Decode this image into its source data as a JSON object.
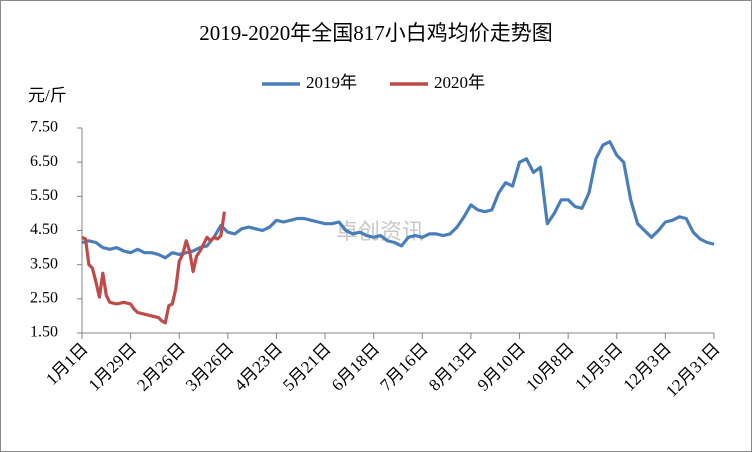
{
  "chart_data": {
    "type": "line",
    "title": "2019-2020年全国817小白鸡均价走势图",
    "y_unit": "元/斤",
    "watermark": "卓创资讯",
    "xlim": [
      0,
      364
    ],
    "xticks": [
      {
        "value": 0,
        "label": "1月1日"
      },
      {
        "value": 28,
        "label": "1月29日"
      },
      {
        "value": 56,
        "label": "2月26日"
      },
      {
        "value": 84,
        "label": "3月26日"
      },
      {
        "value": 112,
        "label": "4月23日"
      },
      {
        "value": 140,
        "label": "5月21日"
      },
      {
        "value": 168,
        "label": "6月18日"
      },
      {
        "value": 196,
        "label": "7月16日"
      },
      {
        "value": 224,
        "label": "8月13日"
      },
      {
        "value": 252,
        "label": "9月10日"
      },
      {
        "value": 280,
        "label": "10月8日"
      },
      {
        "value": 308,
        "label": "11月5日"
      },
      {
        "value": 336,
        "label": "12月3日"
      },
      {
        "value": 364,
        "label": "12月31日"
      }
    ],
    "ylim": [
      1.5,
      7.5
    ],
    "yticks": [
      {
        "value": 1.5,
        "label": "1.50"
      },
      {
        "value": 2.5,
        "label": "2.50"
      },
      {
        "value": 3.5,
        "label": "3.50"
      },
      {
        "value": 4.5,
        "label": "4.50"
      },
      {
        "value": 5.5,
        "label": "5.50"
      },
      {
        "value": 6.5,
        "label": "6.50"
      },
      {
        "value": 7.5,
        "label": "7.50"
      }
    ],
    "grid": false,
    "legend": "top",
    "series": [
      {
        "name": "2019年",
        "color": "#4a7ebb",
        "x": [
          0,
          4,
          8,
          12,
          16,
          20,
          24,
          28,
          32,
          36,
          40,
          44,
          48,
          52,
          56,
          60,
          64,
          68,
          72,
          76,
          80,
          84,
          88,
          92,
          96,
          100,
          104,
          108,
          112,
          116,
          120,
          124,
          128,
          132,
          136,
          140,
          144,
          148,
          152,
          156,
          160,
          164,
          168,
          172,
          176,
          180,
          184,
          188,
          192,
          196,
          200,
          204,
          208,
          212,
          216,
          220,
          224,
          228,
          232,
          236,
          240,
          244,
          248,
          252,
          256,
          260,
          264,
          268,
          272,
          276,
          280,
          284,
          288,
          292,
          296,
          300,
          304,
          308,
          312,
          316,
          320,
          324,
          328,
          332,
          336,
          340,
          344,
          348,
          352,
          356,
          360,
          364
        ],
        "values": [
          4.15,
          4.2,
          4.15,
          4.0,
          3.95,
          4.0,
          3.9,
          3.85,
          3.95,
          3.85,
          3.85,
          3.8,
          3.7,
          3.85,
          3.8,
          3.85,
          3.9,
          4.0,
          4.05,
          4.3,
          4.65,
          4.45,
          4.4,
          4.55,
          4.6,
          4.55,
          4.5,
          4.6,
          4.8,
          4.75,
          4.8,
          4.85,
          4.85,
          4.8,
          4.75,
          4.7,
          4.7,
          4.75,
          4.5,
          4.4,
          4.45,
          4.35,
          4.3,
          4.35,
          4.2,
          4.15,
          4.05,
          4.3,
          4.35,
          4.3,
          4.4,
          4.4,
          4.35,
          4.4,
          4.6,
          4.9,
          5.25,
          5.1,
          5.05,
          5.1,
          5.6,
          5.9,
          5.8,
          6.5,
          6.6,
          6.2,
          6.35,
          4.7,
          5.0,
          5.4,
          5.4,
          5.2,
          5.15,
          5.6,
          6.6,
          7.0,
          7.1,
          6.7,
          6.5,
          5.4,
          4.7,
          4.5,
          4.3,
          4.5,
          4.75,
          4.8,
          4.9,
          4.85,
          4.45,
          4.25,
          4.15,
          4.1
        ]
      },
      {
        "name": "2020年",
        "color": "#be4b48",
        "x": [
          0,
          2,
          4,
          6,
          8,
          10,
          12,
          14,
          16,
          20,
          24,
          28,
          30,
          32,
          36,
          40,
          44,
          46,
          48,
          50,
          52,
          54,
          56,
          58,
          60,
          62,
          64,
          66,
          68,
          70,
          72,
          74,
          76,
          78,
          80,
          82
        ],
        "values": [
          4.3,
          4.25,
          3.5,
          3.4,
          3.0,
          2.55,
          3.25,
          2.6,
          2.4,
          2.35,
          2.4,
          2.35,
          2.2,
          2.1,
          2.05,
          2.0,
          1.95,
          1.85,
          1.8,
          2.3,
          2.35,
          2.8,
          3.6,
          3.8,
          4.2,
          3.9,
          3.3,
          3.75,
          3.9,
          4.1,
          4.3,
          4.2,
          4.3,
          4.25,
          4.35,
          5.05
        ]
      }
    ]
  }
}
